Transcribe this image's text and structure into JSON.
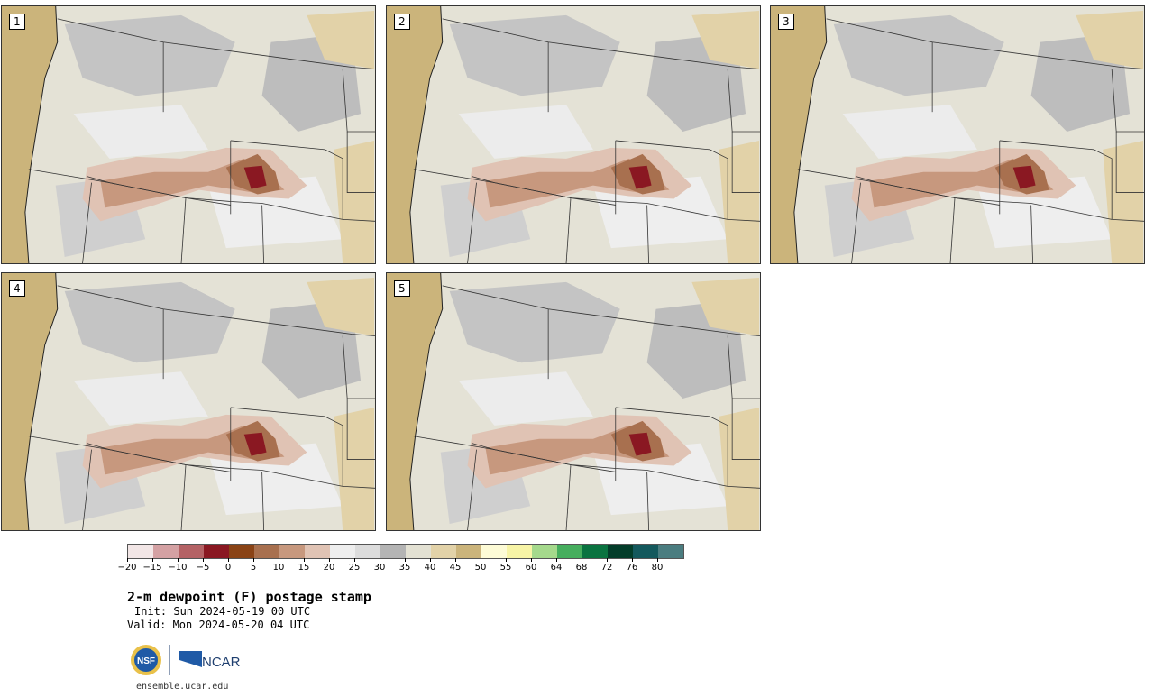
{
  "stamps": [
    {
      "label": "1"
    },
    {
      "label": "2"
    },
    {
      "label": "3"
    },
    {
      "label": "4"
    },
    {
      "label": "5"
    }
  ],
  "colorbar": {
    "colors": [
      "#f2e6e6",
      "#d4a1a3",
      "#b46265",
      "#8a1822",
      "#8a4316",
      "#a8704f",
      "#c7987e",
      "#e0c3b4",
      "#eeeeee",
      "#dcdcdc",
      "#b4b4b4",
      "#e3e1d3",
      "#e2d2a8",
      "#cbb47b",
      "#fdfbd6",
      "#f7f4a6",
      "#a5d98c",
      "#46ae5e",
      "#0a7340",
      "#033d2a",
      "#14595d",
      "#4b7d80"
    ],
    "tick_labels": [
      "−20",
      "−15",
      "−10",
      "−5",
      "0",
      "5",
      "10",
      "15",
      "20",
      "25",
      "30",
      "35",
      "40",
      "45",
      "50",
      "55",
      "60",
      "64",
      "68",
      "72",
      "76",
      "80"
    ]
  },
  "title": "2-m dewpoint (F) postage stamp",
  "init": "Init: Sun 2024-05-19 00 UTC",
  "valid": "Valid: Mon 2024-05-20 04 UTC",
  "logos": {
    "nsf": "NSF",
    "ncar": "NCAR"
  },
  "url": "ensemble.ucar.edu"
}
